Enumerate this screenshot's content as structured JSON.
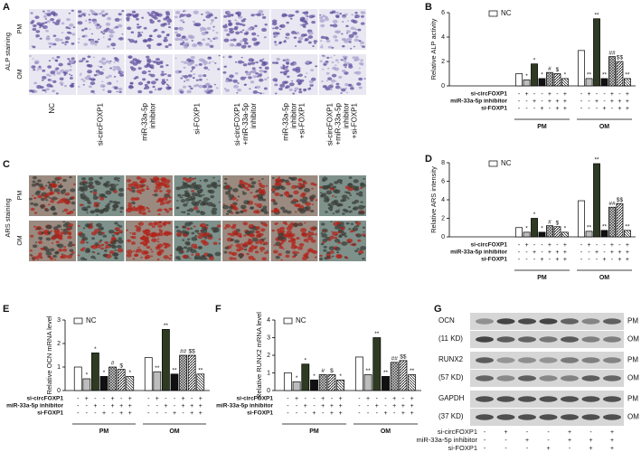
{
  "panel_labels": [
    "A",
    "B",
    "C",
    "D",
    "E",
    "F",
    "G"
  ],
  "staining": {
    "alp_label": "ALP staining",
    "ars_label": "ARS staining",
    "rows": [
      "PM",
      "OM"
    ],
    "groups": [
      [
        "NC"
      ],
      [
        "si-circFOXP1"
      ],
      [
        "miR-33a-5p",
        "inhibitor"
      ],
      [
        "si-FOXP1"
      ],
      [
        "si-circFOXP1",
        "+miR-33a-5p",
        "inhibitor"
      ],
      [
        "miR-33a-5p",
        "inhibitor",
        "+si-FOXP1"
      ],
      [
        "si-circFOXP1",
        "+miR-33a-5p",
        "inhibitor",
        "+si-FOXP1"
      ]
    ]
  },
  "conditions": [
    {
      "label": "si-circFOXP1",
      "signs": [
        "-",
        "+",
        "-",
        "-",
        "+",
        "-",
        "+"
      ]
    },
    {
      "label": "miR-33a-5p inhibitor",
      "signs": [
        "-",
        "-",
        "+",
        "-",
        "+",
        "+",
        "+"
      ]
    },
    {
      "label": "si-FOXP1",
      "signs": [
        "-",
        "-",
        "-",
        "+",
        "-",
        "+",
        "+"
      ]
    }
  ],
  "chart_data": [
    {
      "type": "bar",
      "y_label": "Relative ALP activity",
      "categories": [
        "PM",
        "OM"
      ],
      "ylim": [
        0,
        6
      ],
      "yticks": [
        0,
        2,
        4,
        6
      ],
      "series": [
        {
          "name": "NC",
          "color": "#ffffff",
          "values": [
            1.0,
            2.9
          ],
          "annotations": [
            null,
            null
          ]
        },
        {
          "color": "#bdbdbd",
          "values": [
            0.5,
            0.6
          ],
          "annotations": [
            "*",
            "**"
          ]
        },
        {
          "color": "#2e3b22",
          "values": [
            1.8,
            5.5
          ],
          "annotations": [
            "*",
            "**"
          ]
        },
        {
          "color": "#111111",
          "values": [
            0.6,
            0.6
          ],
          "annotations": [
            "*",
            "**"
          ]
        },
        {
          "color": "#888888",
          "pattern": "cross",
          "values": [
            1.1,
            2.4
          ],
          "annotations": [
            "#",
            "##"
          ]
        },
        {
          "color": "#ffffff",
          "pattern": "diag",
          "values": [
            1.0,
            2.0
          ],
          "annotations": [
            "$",
            "$$"
          ]
        },
        {
          "color": "#ffffff",
          "pattern": "back",
          "values": [
            0.6,
            0.6
          ],
          "annotations": [
            "*",
            "**"
          ]
        }
      ]
    },
    {
      "type": "bar",
      "y_label": "Relative ARS intensity",
      "categories": [
        "PM",
        "OM"
      ],
      "ylim": [
        0,
        8
      ],
      "yticks": [
        0,
        2,
        4,
        6,
        8
      ],
      "series": [
        {
          "name": "NC",
          "color": "#ffffff",
          "values": [
            1.0,
            3.9
          ],
          "annotations": [
            null,
            null
          ]
        },
        {
          "color": "#bdbdbd",
          "values": [
            0.5,
            0.6
          ],
          "annotations": [
            "*",
            "**"
          ]
        },
        {
          "color": "#2e3b22",
          "values": [
            2.0,
            7.9
          ],
          "annotations": [
            "*",
            "**"
          ]
        },
        {
          "color": "#111111",
          "values": [
            0.5,
            0.7
          ],
          "annotations": [
            "*",
            "**"
          ]
        },
        {
          "color": "#888888",
          "pattern": "cross",
          "values": [
            1.2,
            3.2
          ],
          "annotations": [
            "#",
            "##"
          ]
        },
        {
          "color": "#ffffff",
          "pattern": "diag",
          "values": [
            1.1,
            3.6
          ],
          "annotations": [
            "$",
            "$$"
          ]
        },
        {
          "color": "#ffffff",
          "pattern": "back",
          "values": [
            0.5,
            0.7
          ],
          "annotations": [
            "*",
            "**"
          ]
        }
      ]
    },
    {
      "type": "bar",
      "y_label": "Relative OCN mRNA level",
      "categories": [
        "PM",
        "OM"
      ],
      "ylim": [
        0,
        3
      ],
      "yticks": [
        0,
        1,
        2,
        3
      ],
      "series": [
        {
          "name": "NC",
          "color": "#ffffff",
          "values": [
            1.0,
            1.4
          ],
          "annotations": [
            null,
            null
          ]
        },
        {
          "color": "#bdbdbd",
          "values": [
            0.5,
            0.8
          ],
          "annotations": [
            "*",
            "**"
          ]
        },
        {
          "color": "#2e3b22",
          "values": [
            1.6,
            2.6
          ],
          "annotations": [
            "*",
            "**"
          ]
        },
        {
          "color": "#111111",
          "values": [
            0.6,
            0.7
          ],
          "annotations": [
            "*",
            "**"
          ]
        },
        {
          "color": "#888888",
          "pattern": "cross",
          "values": [
            1.0,
            1.5
          ],
          "annotations": [
            "#",
            "##"
          ]
        },
        {
          "color": "#ffffff",
          "pattern": "diag",
          "values": [
            0.9,
            1.5
          ],
          "annotations": [
            "$",
            "$$"
          ]
        },
        {
          "color": "#ffffff",
          "pattern": "back",
          "values": [
            0.6,
            0.7
          ],
          "annotations": [
            "*",
            "**"
          ]
        }
      ]
    },
    {
      "type": "bar",
      "y_label": "Relative RUNX2 mRNA level",
      "categories": [
        "PM",
        "OM"
      ],
      "ylim": [
        0,
        4
      ],
      "yticks": [
        0,
        1,
        2,
        3,
        4
      ],
      "series": [
        {
          "name": "NC",
          "color": "#ffffff",
          "values": [
            1.0,
            1.9
          ],
          "annotations": [
            null,
            null
          ]
        },
        {
          "color": "#bdbdbd",
          "values": [
            0.5,
            0.9
          ],
          "annotations": [
            "*",
            "**"
          ]
        },
        {
          "color": "#2e3b22",
          "values": [
            1.5,
            3.0
          ],
          "annotations": [
            "*",
            "**"
          ]
        },
        {
          "color": "#111111",
          "values": [
            0.6,
            0.8
          ],
          "annotations": [
            "*",
            "**"
          ]
        },
        {
          "color": "#888888",
          "pattern": "cross",
          "values": [
            0.9,
            1.6
          ],
          "annotations": [
            "#",
            "##"
          ]
        },
        {
          "color": "#ffffff",
          "pattern": "diag",
          "values": [
            0.9,
            1.7
          ],
          "annotations": [
            "$",
            "$$"
          ]
        },
        {
          "color": "#ffffff",
          "pattern": "back",
          "values": [
            0.6,
            0.9
          ],
          "annotations": [
            "*",
            "**"
          ]
        }
      ]
    }
  ],
  "blot": {
    "proteins": [
      {
        "name": "OCN",
        "size": "(11 KD)"
      },
      {
        "name": "RUNX2",
        "size": "(57 KD)"
      },
      {
        "name": "GAPDH",
        "size": "(37 KD)"
      }
    ],
    "rows": [
      "PM",
      "OM"
    ]
  }
}
